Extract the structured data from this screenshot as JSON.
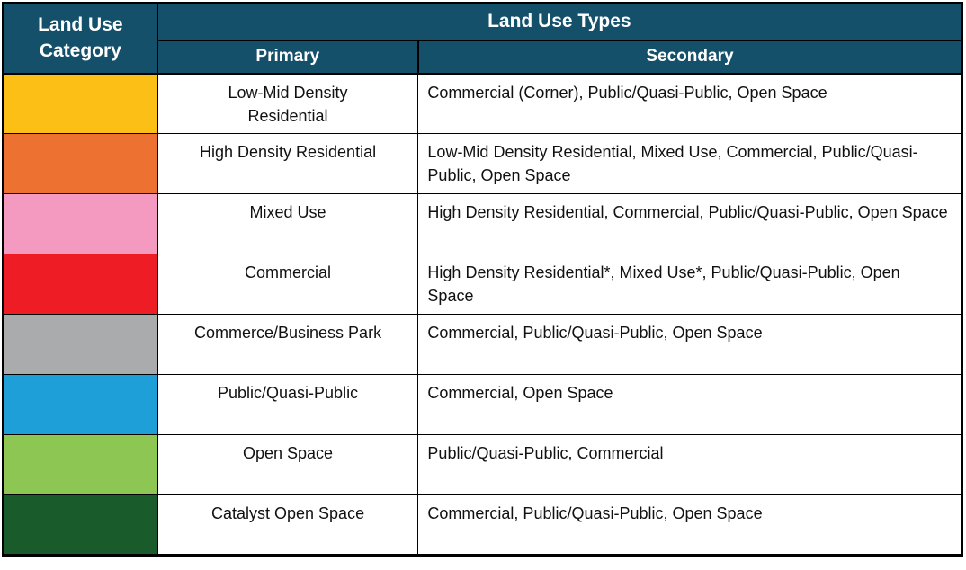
{
  "colors": {
    "header_bg": "#15506B",
    "header_text": "#FFFFFF",
    "border": "#000000",
    "body_text": "#111111"
  },
  "header": {
    "category": "Land Use Category",
    "types": "Land Use Types",
    "primary": "Primary",
    "secondary": "Secondary"
  },
  "rows": [
    {
      "swatch_color": "#FCBF16",
      "swatch_name": "yellow",
      "primary": "Low-Mid Density Residential",
      "secondary": "Commercial (Corner), Public/Quasi-Public, Open Space"
    },
    {
      "swatch_color": "#ED7231",
      "swatch_name": "orange",
      "primary": "High Density Residential",
      "secondary": "Low-Mid Density Residential, Mixed Use, Commercial, Public/Quasi-Public, Open Space"
    },
    {
      "swatch_color": "#F49AC1",
      "swatch_name": "pink",
      "primary": "Mixed Use",
      "secondary": "High Density Residential, Commercial, Public/Quasi-Public, Open Space"
    },
    {
      "swatch_color": "#EE1C25",
      "swatch_name": "red",
      "primary": "Commercial",
      "secondary": "High Density Residential*, Mixed Use*, Public/Quasi-Public, Open Space"
    },
    {
      "swatch_color": "#AAABAD",
      "swatch_name": "gray",
      "primary": "Commerce/Business Park",
      "secondary": "Commercial, Public/Quasi-Public, Open Space"
    },
    {
      "swatch_color": "#1E9FD7",
      "swatch_name": "blue",
      "primary": "Public/Quasi-Public",
      "secondary": "Commercial, Open Space"
    },
    {
      "swatch_color": "#8DC653",
      "swatch_name": "light-green",
      "primary": "Open Space",
      "secondary": "Public/Quasi-Public, Commercial"
    },
    {
      "swatch_color": "#1A5B2C",
      "swatch_name": "dark-green",
      "primary": "Catalyst Open Space",
      "secondary": "Commercial, Public/Quasi-Public, Open Space"
    }
  ]
}
